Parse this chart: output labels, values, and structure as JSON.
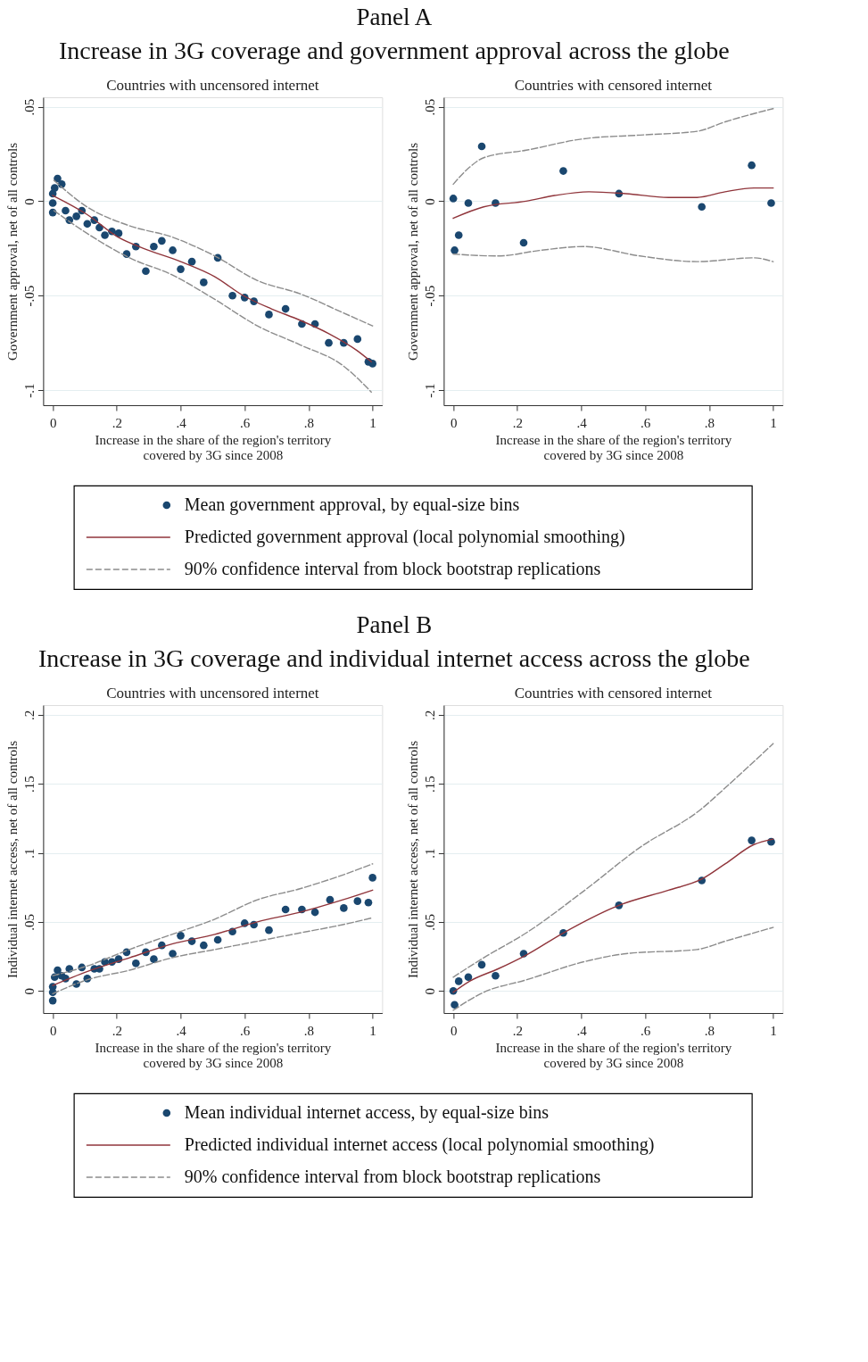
{
  "chart_data": [
    {
      "type": "scatter",
      "title": "Countries with uncensored internet",
      "annotations": [
        "Panel A",
        "Increase in 3G coverage and government approval across the globe"
      ],
      "xlabel": "Increase in the share of the region's territory\ncovered by 3G since 2008",
      "ylabel": "Government approval, net of all controls",
      "xlim": [
        -0.03,
        1.03
      ],
      "ylim": [
        -0.108,
        0.055
      ],
      "xticks": [
        0,
        {
          "value": 0.2,
          "label": ".2"
        },
        {
          "value": 0.4,
          "label": ".4"
        },
        {
          "value": 0.6,
          "label": ".6"
        },
        {
          "value": 0.8,
          "label": ".8"
        },
        1
      ],
      "yticks": [
        {
          "value": 0.05,
          "label": ".05"
        },
        0,
        {
          "value": -0.05,
          "label": "-.05"
        },
        {
          "value": -0.1,
          "label": "-.1"
        }
      ],
      "grid": "y",
      "legend": "bottom",
      "series": [
        {
          "name": "Mean government approval, by equal-size bins",
          "marker": "circle",
          "color": "#1a476f",
          "x": [
            0,
            0,
            0,
            0.006,
            0.015,
            0.028,
            0.04,
            0.052,
            0.074,
            0.091,
            0.108,
            0.13,
            0.146,
            0.163,
            0.185,
            0.206,
            0.231,
            0.26,
            0.291,
            0.316,
            0.341,
            0.375,
            0.4,
            0.435,
            0.472,
            0.516,
            0.562,
            0.6,
            0.629,
            0.676,
            0.728,
            0.779,
            0.82,
            0.863,
            0.91,
            0.953,
            0.987,
            1.0
          ],
          "values": [
            -0.001,
            -0.006,
            0.004,
            0.007,
            0.012,
            0.009,
            -0.005,
            -0.01,
            -0.008,
            -0.005,
            -0.012,
            -0.01,
            -0.014,
            -0.018,
            -0.016,
            -0.017,
            -0.028,
            -0.024,
            -0.037,
            -0.024,
            -0.021,
            -0.026,
            -0.036,
            -0.032,
            -0.043,
            -0.03,
            -0.05,
            -0.051,
            -0.053,
            -0.06,
            -0.057,
            -0.065,
            -0.065,
            -0.075,
            -0.075,
            -0.073,
            -0.085,
            -0.086
          ]
        },
        {
          "name": "Predicted government approval (local polynomial smoothing)",
          "type": "line",
          "line_style": "solid",
          "color": "#90353b",
          "x": [
            0,
            0.107,
            0.204,
            0.284,
            0.4,
            0.507,
            0.596,
            0.684,
            0.773,
            0.862,
            0.951,
            0.996
          ],
          "values": [
            0.003,
            -0.007,
            -0.019,
            -0.025,
            -0.032,
            -0.04,
            -0.05,
            -0.057,
            -0.063,
            -0.07,
            -0.079,
            -0.085
          ]
        },
        {
          "name": "90% confidence interval from block bootstrap replications",
          "type": "line",
          "line_style": "dashed",
          "color": "#8c8c8c",
          "x": [
            0.004,
            0.107,
            0.24,
            0.373,
            0.507,
            0.64,
            0.773,
            0.907,
            1.0
          ],
          "values": [
            0.011,
            -0.003,
            -0.013,
            -0.019,
            -0.029,
            -0.042,
            -0.049,
            -0.059,
            -0.066
          ]
        },
        {
          "type": "line",
          "line_style": "dashed",
          "color": "#8c8c8c",
          "x": [
            0.004,
            0.107,
            0.24,
            0.373,
            0.507,
            0.64,
            0.773,
            0.907,
            0.996
          ],
          "values": [
            -0.005,
            -0.017,
            -0.03,
            -0.039,
            -0.052,
            -0.066,
            -0.076,
            -0.087,
            -0.101
          ]
        }
      ]
    },
    {
      "type": "scatter",
      "title": "Countries with censored internet",
      "xlabel": "Increase in the share of the region's territory\ncovered by 3G since 2008",
      "ylabel": "Government approval, net of all controls",
      "xlim": [
        -0.03,
        1.03
      ],
      "ylim": [
        -0.108,
        0.055
      ],
      "xticks": [
        0,
        {
          "value": 0.2,
          "label": ".2"
        },
        {
          "value": 0.4,
          "label": ".4"
        },
        {
          "value": 0.6,
          "label": ".6"
        },
        {
          "value": 0.8,
          "label": ".8"
        },
        1
      ],
      "yticks": [
        {
          "value": 0.05,
          "label": ".05"
        },
        0,
        {
          "value": -0.05,
          "label": "-.05"
        },
        {
          "value": -0.1,
          "label": "-.1"
        }
      ],
      "grid": "y",
      "series": [
        {
          "marker": "circle",
          "color": "#1a476f",
          "x": [
            0,
            0.004,
            0.017,
            0.047,
            0.089,
            0.132,
            0.22,
            0.344,
            0.518,
            0.777,
            0.933,
            0.994
          ],
          "values": [
            0.0014,
            -0.026,
            -0.018,
            -0.001,
            0.029,
            -0.001,
            -0.022,
            0.016,
            0.004,
            -0.003,
            0.019,
            -0.001
          ]
        },
        {
          "type": "line",
          "line_style": "solid",
          "color": "#90353b",
          "x": [
            0,
            0.095,
            0.228,
            0.317,
            0.424,
            0.54,
            0.673,
            0.762,
            0.85,
            0.94,
            1.0
          ],
          "values": [
            -0.009,
            -0.003,
            0,
            0.003,
            0.005,
            0.004,
            0.002,
            0.002,
            0.005,
            0.007,
            0.007
          ]
        },
        {
          "type": "line",
          "line_style": "dashed",
          "color": "#8c8c8c",
          "x": [
            0,
            0.051,
            0.095,
            0.228,
            0.406,
            0.584,
            0.762,
            0.85,
            1.0
          ],
          "values": [
            0.009,
            0.018,
            0.023,
            0.027,
            0.033,
            0.035,
            0.037,
            0.042,
            0.049
          ]
        },
        {
          "type": "line",
          "line_style": "dashed",
          "color": "#8c8c8c",
          "x": [
            0,
            0.14,
            0.273,
            0.406,
            0.584,
            0.762,
            0.94,
            1.0
          ],
          "values": [
            -0.028,
            -0.029,
            -0.026,
            -0.024,
            -0.029,
            -0.032,
            -0.03,
            -0.032
          ]
        }
      ]
    },
    {
      "type": "scatter",
      "title": "Countries with uncensored internet",
      "annotations": [
        "Panel B",
        "Increase in 3G coverage and individual internet access across the globe"
      ],
      "xlabel": "Increase in the share of the region's territory\ncovered by 3G since 2008",
      "ylabel": "Individual internet access, net of all controls",
      "xlim": [
        -0.03,
        1.03
      ],
      "ylim": [
        -0.016,
        0.207
      ],
      "xticks": [
        0,
        {
          "value": 0.2,
          "label": ".2"
        },
        {
          "value": 0.4,
          "label": ".4"
        },
        {
          "value": 0.6,
          "label": ".6"
        },
        {
          "value": 0.8,
          "label": ".8"
        },
        1
      ],
      "yticks": [
        0,
        {
          "value": 0.05,
          "label": ".05"
        },
        {
          "value": 0.1,
          "label": ".1"
        },
        {
          "value": 0.15,
          "label": ".15"
        },
        {
          "value": 0.2,
          "label": ".2"
        }
      ],
      "grid": "y",
      "legend": "bottom",
      "series": [
        {
          "name": "Mean individual internet access, by equal-size bins",
          "marker": "circle",
          "color": "#1a476f",
          "x": [
            0,
            0,
            0,
            0.006,
            0.015,
            0.028,
            0.04,
            0.052,
            0.074,
            0.091,
            0.108,
            0.13,
            0.146,
            0.163,
            0.185,
            0.206,
            0.231,
            0.26,
            0.291,
            0.316,
            0.341,
            0.375,
            0.4,
            0.435,
            0.472,
            0.516,
            0.562,
            0.6,
            0.629,
            0.676,
            0.728,
            0.779,
            0.82,
            0.867,
            0.91,
            0.953,
            0.987,
            1.0
          ],
          "values": [
            -0.007,
            -0.001,
            0.003,
            0.01,
            0.015,
            0.011,
            0.009,
            0.016,
            0.005,
            0.017,
            0.009,
            0.016,
            0.016,
            0.021,
            0.021,
            0.023,
            0.028,
            0.02,
            0.028,
            0.023,
            0.033,
            0.027,
            0.04,
            0.036,
            0.033,
            0.037,
            0.043,
            0.049,
            0.048,
            0.044,
            0.059,
            0.059,
            0.057,
            0.066,
            0.06,
            0.065,
            0.064,
            0.082
          ]
        },
        {
          "name": "Predicted individual internet access (local polynomial smoothing)",
          "type": "line",
          "line_style": "solid",
          "color": "#90353b",
          "x": [
            0,
            0.107,
            0.24,
            0.373,
            0.507,
            0.64,
            0.773,
            0.907,
            1.0
          ],
          "values": [
            0.004,
            0.014,
            0.024,
            0.034,
            0.041,
            0.05,
            0.057,
            0.066,
            0.073
          ]
        },
        {
          "name": "90% confidence interval from block bootstrap replications",
          "type": "line",
          "line_style": "dashed",
          "color": "#8c8c8c",
          "x": [
            0,
            0.107,
            0.24,
            0.373,
            0.507,
            0.64,
            0.773,
            0.907,
            1.0
          ],
          "values": [
            0.011,
            0.018,
            0.03,
            0.041,
            0.052,
            0.066,
            0.074,
            0.084,
            0.092
          ]
        },
        {
          "type": "line",
          "line_style": "dashed",
          "color": "#8c8c8c",
          "x": [
            0,
            0.107,
            0.24,
            0.373,
            0.507,
            0.64,
            0.773,
            0.907,
            1.0
          ],
          "values": [
            -0.002,
            0.008,
            0.015,
            0.024,
            0.03,
            0.036,
            0.042,
            0.048,
            0.053
          ]
        }
      ]
    },
    {
      "type": "scatter",
      "title": "Countries with censored internet",
      "xlabel": "Increase in the share of the region's territory\ncovered by 3G since 2008",
      "ylabel": "Individual internet access, net of all controls",
      "xlim": [
        -0.03,
        1.03
      ],
      "ylim": [
        -0.016,
        0.207
      ],
      "xticks": [
        0,
        {
          "value": 0.2,
          "label": ".2"
        },
        {
          "value": 0.4,
          "label": ".4"
        },
        {
          "value": 0.6,
          "label": ".6"
        },
        {
          "value": 0.8,
          "label": ".8"
        },
        1
      ],
      "yticks": [
        0,
        {
          "value": 0.05,
          "label": ".05"
        },
        {
          "value": 0.1,
          "label": ".1"
        },
        {
          "value": 0.15,
          "label": ".15"
        },
        {
          "value": 0.2,
          "label": ".2"
        }
      ],
      "grid": "y",
      "series": [
        {
          "marker": "circle",
          "color": "#1a476f",
          "x": [
            0,
            0.004,
            0.017,
            0.047,
            0.089,
            0.132,
            0.22,
            0.344,
            0.518,
            0.777,
            0.933,
            0.994
          ],
          "values": [
            0,
            -0.01,
            0.007,
            0.01,
            0.019,
            0.011,
            0.027,
            0.042,
            0.062,
            0.08,
            0.109,
            0.108
          ]
        },
        {
          "type": "line",
          "line_style": "solid",
          "color": "#90353b",
          "x": [
            0,
            0.051,
            0.14,
            0.228,
            0.344,
            0.518,
            0.673,
            0.777,
            0.85,
            0.94,
            1.0
          ],
          "values": [
            -0.001,
            0.007,
            0.016,
            0.026,
            0.042,
            0.062,
            0.073,
            0.081,
            0.092,
            0.106,
            0.11
          ]
        },
        {
          "type": "line",
          "line_style": "dashed",
          "color": "#8c8c8c",
          "x": [
            0,
            0.095,
            0.228,
            0.406,
            0.584,
            0.777,
            0.85,
            1.0
          ],
          "values": [
            0.01,
            0.024,
            0.042,
            0.072,
            0.104,
            0.132,
            0.147,
            0.179
          ]
        },
        {
          "type": "line",
          "line_style": "dashed",
          "color": "#8c8c8c",
          "x": [
            0,
            0.095,
            0.228,
            0.406,
            0.54,
            0.762,
            0.85,
            1.0
          ],
          "values": [
            -0.014,
            -0.001,
            0.008,
            0.021,
            0.027,
            0.03,
            0.036,
            0.046
          ]
        }
      ]
    }
  ]
}
